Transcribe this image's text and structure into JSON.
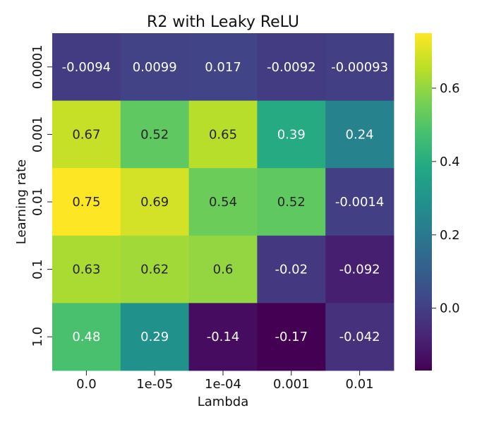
{
  "chart_data": {
    "type": "heatmap",
    "title": "R2 with Leaky ReLU",
    "xlabel": "Lambda",
    "ylabel": "Learning rate",
    "x_categories": [
      "0.0",
      "1e-05",
      "1e-04",
      "0.001",
      "0.01"
    ],
    "y_categories": [
      "0.0001",
      "0.001",
      "0.01",
      "0.1",
      "1.0"
    ],
    "values": [
      [
        -0.0094,
        0.0099,
        0.017,
        -0.0092,
        -0.00093
      ],
      [
        0.67,
        0.52,
        0.65,
        0.39,
        0.24
      ],
      [
        0.75,
        0.69,
        0.54,
        0.52,
        -0.0014
      ],
      [
        0.63,
        0.62,
        0.6,
        -0.02,
        -0.092
      ],
      [
        0.48,
        0.29,
        -0.14,
        -0.17,
        -0.042
      ]
    ],
    "value_labels": [
      [
        "-0.0094",
        "0.0099",
        "0.017",
        "-0.0092",
        "-0.00093"
      ],
      [
        "0.67",
        "0.52",
        "0.65",
        "0.39",
        "0.24"
      ],
      [
        "0.75",
        "0.69",
        "0.54",
        "0.52",
        "-0.0014"
      ],
      [
        "0.63",
        "0.62",
        "0.6",
        "-0.02",
        "-0.092"
      ],
      [
        "0.48",
        "0.29",
        "-0.14",
        "-0.17",
        "-0.042"
      ]
    ],
    "colormap": "viridis",
    "vmin": -0.17,
    "vmax": 0.75,
    "colorbar_ticks": [
      "0.0",
      "0.2",
      "0.4",
      "0.6"
    ],
    "colorbar_tick_values": [
      0.0,
      0.2,
      0.4,
      0.6
    ]
  }
}
